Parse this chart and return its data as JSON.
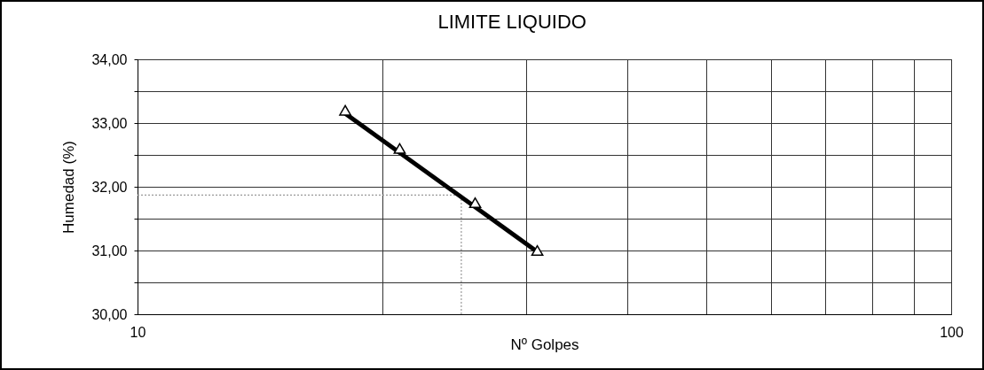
{
  "chart_data": {
    "type": "scatter",
    "title": "LIMITE LIQUIDO",
    "xlabel": "Nº Golpes",
    "ylabel": "Humedad (%)",
    "log": "x",
    "grid": true,
    "xlim": [
      10,
      100
    ],
    "xticks": [
      10,
      {
        "value": 20,
        "label": null
      },
      {
        "value": 30,
        "label": null
      },
      {
        "value": 40,
        "label": null
      },
      {
        "value": 50,
        "label": null
      },
      {
        "value": 60,
        "label": null
      },
      {
        "value": 70,
        "label": null
      },
      {
        "value": 80,
        "label": null
      },
      {
        "value": 90,
        "label": null
      },
      100
    ],
    "ylim": [
      30,
      34
    ],
    "yticks": [
      {
        "value": 30,
        "label": "30,00"
      },
      {
        "value": 30.5,
        "label": null
      },
      {
        "value": 31,
        "label": "31,00"
      },
      {
        "value": 31.5,
        "label": null
      },
      {
        "value": 32,
        "label": "32,00"
      },
      {
        "value": 32.5,
        "label": null
      },
      {
        "value": 33,
        "label": "33,00"
      },
      {
        "value": 33.5,
        "label": null
      },
      {
        "value": 34,
        "label": "34,00"
      }
    ],
    "series": [
      {
        "type": "line",
        "color": "#000000",
        "x": [
          18,
          31
        ],
        "values": [
          33.15,
          30.98
        ]
      },
      {
        "color": "#000000",
        "marker": "triangle",
        "x": [
          18,
          21,
          26,
          31
        ],
        "values": [
          33.2,
          32.6,
          31.75,
          31.0
        ]
      }
    ],
    "ref_lines": [
      {
        "axis": "x",
        "value": 25,
        "color": "#999999",
        "line_style": "dotted"
      },
      {
        "axis": "y",
        "value": 31.87,
        "color": "#999999",
        "line_style": "dotted"
      }
    ]
  }
}
